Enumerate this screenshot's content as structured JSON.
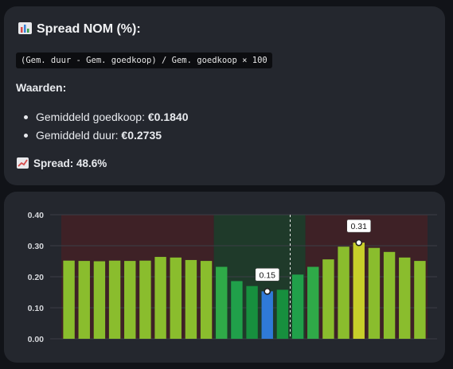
{
  "info": {
    "title": "Spread NOM (%):",
    "title_icon": "bar-chart-emoji-icon",
    "formula": "(Gem. duur - Gem. goedkoop) / Gem. goedkoop × 100",
    "values_heading": "Waarden:",
    "items": [
      {
        "label": "Gemiddeld goedkoop: ",
        "value": "€0.1840"
      },
      {
        "label": "Gemiddeld duur: ",
        "value": "€0.2735"
      }
    ],
    "spread_icon": "chart-increasing-emoji-icon",
    "spread_text": "Spread: 48.6%"
  },
  "chart_data": {
    "type": "bar",
    "ylim": [
      0,
      0.4
    ],
    "yticks": [
      "0.40",
      "0.30",
      "0.20",
      "0.10",
      "0.00"
    ],
    "ytick_values": [
      0.4,
      0.3,
      0.2,
      0.1,
      0.0
    ],
    "values": [
      0.252,
      0.251,
      0.25,
      0.252,
      0.251,
      0.252,
      0.264,
      0.262,
      0.254,
      0.251,
      0.232,
      0.186,
      0.17,
      0.153,
      0.158,
      0.207,
      0.232,
      0.256,
      0.297,
      0.31,
      0.293,
      0.28,
      0.262,
      0.251
    ],
    "colors": [
      "#8abd2d",
      "#8abd2d",
      "#8abd2d",
      "#8abd2d",
      "#8abd2d",
      "#8abd2d",
      "#8abd2d",
      "#8abd2d",
      "#8abd2d",
      "#8abd2d",
      "#2faa48",
      "#20a04a",
      "#178f3e",
      "#2f7ad8",
      "#178f3e",
      "#20a04a",
      "#2faa48",
      "#8abd2d",
      "#8abd2d",
      "#c8cf2a",
      "#8abd2d",
      "#8abd2d",
      "#8abd2d",
      "#8abd2d"
    ],
    "zones": [
      {
        "kind": "expensive",
        "from": 0,
        "to": 10,
        "color": "#3e2126"
      },
      {
        "kind": "cheap",
        "from": 10,
        "to": 16,
        "color": "#1f3a2a"
      },
      {
        "kind": "expensive",
        "from": 16,
        "to": 24,
        "color": "#3e2126"
      }
    ],
    "current_marker_between": [
      14,
      15
    ],
    "annotations": [
      {
        "index": 13,
        "label": "0.15"
      },
      {
        "index": 19,
        "label": "0.31"
      }
    ],
    "grid": true
  }
}
